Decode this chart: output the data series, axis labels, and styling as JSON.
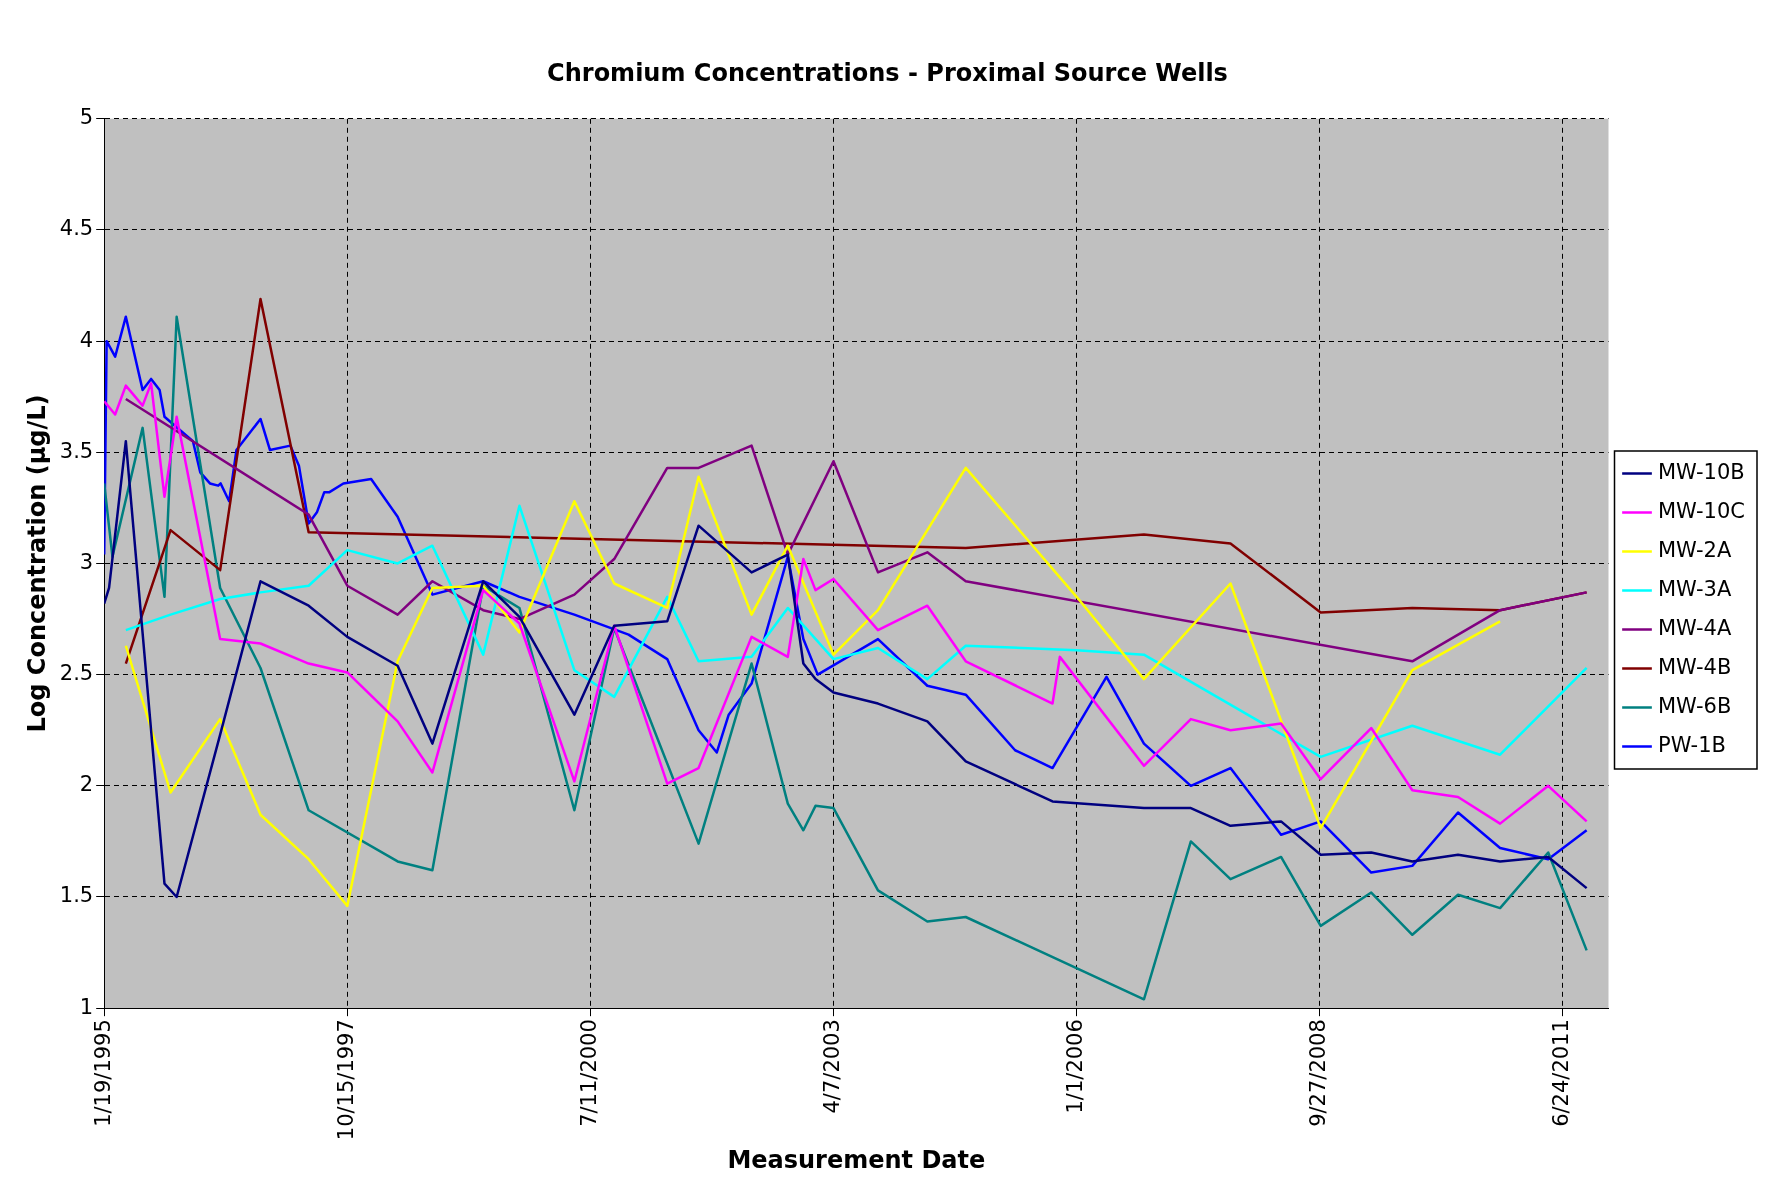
{
  "chart_data": {
    "type": "line",
    "title": "Chromium Concentrations - Proximal Source Wells",
    "xlabel": "Measurement Date",
    "ylabel": "Log Concentration (µg/L)",
    "xlim": [
      "1995-01-19",
      "2011-12-29"
    ],
    "xticks": [
      {
        "value": "1995-01-19",
        "label": "1/19/1995"
      },
      {
        "value": "1997-10-15",
        "label": "10/15/1997"
      },
      {
        "value": "2000-07-11",
        "label": "7/11/2000"
      },
      {
        "value": "2003-04-07",
        "label": "4/7/2003"
      },
      {
        "value": "2006-01-01",
        "label": "1/1/2006"
      },
      {
        "value": "2008-09-27",
        "label": "9/27/2008"
      },
      {
        "value": "2011-06-24",
        "label": "6/24/2011"
      }
    ],
    "ylim": [
      1,
      5
    ],
    "yticks": [
      1,
      1.5,
      2,
      2.5,
      3,
      3.5,
      4,
      4.5,
      5
    ],
    "grid": true,
    "legend": "right",
    "marker": "none",
    "line_style": "solid",
    "series": [
      {
        "name": "MW-10B",
        "color": "#000080",
        "x": [
          "1995-01-19",
          "1995-02-08",
          "1995-04-18",
          "1995-09-24",
          "1995-11-13",
          "1996-05-10",
          "1996-10-23",
          "1997-05-09",
          "1997-10-15",
          "1998-05-10",
          "1998-09-30",
          "1999-04-27",
          "1999-09-23",
          "2000-05-06",
          "2000-10-17",
          "2001-05-23",
          "2001-09-29",
          "2002-05-05",
          "2002-10-01",
          "2002-12-04",
          "2003-01-23",
          "2003-04-07",
          "2003-10-07",
          "2004-04-27",
          "2004-10-02",
          "2005-09-24",
          "2006-10-05",
          "2007-04-16",
          "2007-09-26",
          "2008-04-21",
          "2008-10-01",
          "2009-04-27",
          "2009-10-13",
          "2010-04-19",
          "2010-10-09",
          "2011-04-25",
          "2011-09-30"
        ],
        "values": [
          2.82,
          2.89,
          3.55,
          1.56,
          1.5,
          2.23,
          2.92,
          2.81,
          2.67,
          2.54,
          2.19,
          2.92,
          2.76,
          2.32,
          2.72,
          2.74,
          3.17,
          2.96,
          3.04,
          2.55,
          2.48,
          2.42,
          2.37,
          2.29,
          2.11,
          1.93,
          1.9,
          1.9,
          1.82,
          1.84,
          1.69,
          1.7,
          1.66,
          1.69,
          1.66,
          1.68,
          1.54
        ]
      },
      {
        "name": "MW-10C",
        "color": "#ff00ff",
        "x": [
          "1995-01-19",
          "1995-03-05",
          "1995-04-18",
          "1995-06-26",
          "1995-07-31",
          "1995-09-24",
          "1995-11-13",
          "1996-05-10",
          "1996-10-23",
          "1997-05-09",
          "1997-10-15",
          "1998-05-10",
          "1998-09-30",
          "1999-04-27",
          "1999-09-23",
          "2000-05-06",
          "2000-10-17",
          "2001-05-23",
          "2001-09-29",
          "2002-05-05",
          "2002-10-01",
          "2002-12-04",
          "2003-01-23",
          "2003-04-07",
          "2003-10-07",
          "2004-04-27",
          "2004-10-02",
          "2005-09-24",
          "2005-10-24",
          "2006-10-05",
          "2007-04-16",
          "2007-09-26",
          "2008-04-21",
          "2008-10-01",
          "2009-04-27",
          "2009-10-13",
          "2010-04-19",
          "2010-10-09",
          "2011-04-25",
          "2011-09-30"
        ],
        "values": [
          3.73,
          3.67,
          3.8,
          3.71,
          3.81,
          3.3,
          3.66,
          2.66,
          2.64,
          2.55,
          2.51,
          2.29,
          2.06,
          2.88,
          2.73,
          2.02,
          2.72,
          2.01,
          2.08,
          2.67,
          2.58,
          3.02,
          2.88,
          2.93,
          2.7,
          2.81,
          2.56,
          2.37,
          2.58,
          2.09,
          2.3,
          2.25,
          2.28,
          2.03,
          2.26,
          1.98,
          1.95,
          1.83,
          2,
          1.84
        ]
      },
      {
        "name": "MW-2A",
        "color": "#ffff00",
        "x": [
          "1995-04-18",
          "1995-10-19",
          "1996-05-10",
          "1996-10-23",
          "1997-05-09",
          "1997-10-15",
          "1998-05-10",
          "1998-09-30",
          "1999-04-27",
          "1999-09-23",
          "2000-05-06",
          "2000-10-17",
          "2001-05-23",
          "2001-09-29",
          "2002-05-05",
          "2002-10-01",
          "2003-04-07",
          "2003-10-07",
          "2004-10-02",
          "2006-01-01",
          "2006-10-05",
          "2007-09-26",
          "2008-10-01",
          "2009-10-13",
          "2010-10-09"
        ],
        "values": [
          2.63,
          1.97,
          2.3,
          1.87,
          1.67,
          1.46,
          2.56,
          2.89,
          2.9,
          2.69,
          3.28,
          2.91,
          2.8,
          3.39,
          2.77,
          3.08,
          2.59,
          2.79,
          3.43,
          2.85,
          2.48,
          2.91,
          1.81,
          2.52,
          2.74
        ]
      },
      {
        "name": "MW-3A",
        "color": "#00ffff",
        "x": [
          "1995-04-18",
          "1995-10-19",
          "1996-05-10",
          "1996-10-23",
          "1997-05-09",
          "1997-10-15",
          "1998-05-10",
          "1998-09-30",
          "1999-04-27",
          "1999-09-23",
          "2000-05-06",
          "2000-10-17",
          "2001-05-23",
          "2001-09-29",
          "2002-05-05",
          "2002-10-01",
          "2003-04-07",
          "2003-10-07",
          "2004-04-27",
          "2004-10-02",
          "2006-01-01",
          "2006-10-05",
          "2008-10-01",
          "2009-10-13",
          "2010-10-09",
          "2011-09-30"
        ],
        "values": [
          2.7,
          2.77,
          2.84,
          2.87,
          2.9,
          3.06,
          3,
          3.08,
          2.59,
          3.26,
          2.52,
          2.4,
          2.85,
          2.56,
          2.58,
          2.8,
          2.57,
          2.62,
          2.48,
          2.63,
          2.61,
          2.59,
          2.13,
          2.27,
          2.14,
          2.53
        ]
      },
      {
        "name": "MW-4A",
        "color": "#800080",
        "x": [
          "1995-04-18",
          "1997-05-09",
          "1997-10-15",
          "1998-05-10",
          "1998-09-30",
          "1999-04-27",
          "1999-09-23",
          "2000-05-06",
          "2000-10-17",
          "2001-05-23",
          "2001-09-29",
          "2002-05-05",
          "2002-10-01",
          "2003-04-07",
          "2003-10-07",
          "2004-04-27",
          "2004-10-02",
          "2009-10-13",
          "2010-10-09",
          "2011-09-30"
        ],
        "values": [
          3.74,
          3.22,
          2.9,
          2.77,
          2.92,
          2.79,
          2.75,
          2.86,
          3.02,
          3.43,
          3.43,
          3.53,
          3.04,
          3.46,
          2.96,
          3.05,
          2.92,
          2.56,
          2.79,
          2.87
        ]
      },
      {
        "name": "MW-4B",
        "color": "#800000",
        "x": [
          "1995-04-18",
          "1995-10-19",
          "1996-05-10",
          "1996-10-23",
          "1997-05-09",
          "2004-10-02",
          "2006-10-05",
          "2007-09-26",
          "2008-10-01",
          "2009-10-13",
          "2010-10-09",
          "2011-09-30"
        ],
        "values": [
          2.55,
          3.15,
          2.97,
          4.19,
          3.14,
          3.07,
          3.13,
          3.09,
          2.78,
          2.8,
          2.79,
          2.87
        ]
      },
      {
        "name": "MW-6B",
        "color": "#008080",
        "x": [
          "1995-01-19",
          "1995-02-22",
          "1995-06-26",
          "1995-09-24",
          "1995-11-13",
          "1996-05-10",
          "1996-10-23",
          "1997-05-09",
          "1998-05-10",
          "1998-09-30",
          "1999-04-27",
          "1999-09-23",
          "2000-05-06",
          "2000-10-17",
          "2001-09-29",
          "2002-05-05",
          "2002-10-01",
          "2002-12-04",
          "2003-01-23",
          "2003-04-07",
          "2003-10-07",
          "2004-04-27",
          "2004-10-02",
          "2006-10-05",
          "2007-04-16",
          "2007-09-26",
          "2008-04-21",
          "2008-10-01",
          "2009-04-27",
          "2009-10-13",
          "2010-04-19",
          "2010-10-09",
          "2011-04-25",
          "2011-09-30"
        ],
        "values": [
          3.36,
          3.03,
          3.61,
          2.85,
          4.11,
          2.89,
          2.53,
          1.89,
          1.66,
          1.62,
          2.9,
          2.8,
          1.89,
          2.71,
          1.74,
          2.55,
          1.92,
          1.8,
          1.91,
          1.9,
          1.53,
          1.39,
          1.41,
          1.04,
          1.75,
          1.58,
          1.68,
          1.37,
          1.52,
          1.33,
          1.51,
          1.45,
          1.7,
          1.26
        ]
      },
      {
        "name": "PW-1B",
        "color": "#0000ff",
        "x": [
          "1995-01-19",
          "1995-01-29",
          "1995-03-05",
          "1995-04-18",
          "1995-06-26",
          "1995-07-31",
          "1995-09-04",
          "1995-09-24",
          "1996-01-19",
          "1996-02-18",
          "1996-03-29",
          "1996-05-02",
          "1996-05-12",
          "1996-06-16",
          "1996-07-16",
          "1996-10-23",
          "1996-12-01",
          "1997-02-23",
          "1997-03-30",
          "1997-05-09",
          "1997-06-12",
          "1997-07-12",
          "1997-08-01",
          "1997-09-29",
          "1998-01-21",
          "1998-05-10",
          "1998-09-30",
          "1999-04-27",
          "1999-09-23",
          "2000-05-06",
          "2000-12-15",
          "2001-05-23",
          "2001-09-29",
          "2001-12-13",
          "2002-01-31",
          "2002-05-05",
          "2002-10-01",
          "2002-12-04",
          "2003-02-01",
          "2003-10-07",
          "2004-04-27",
          "2004-10-02",
          "2005-04-23",
          "2005-09-24",
          "2006-05-04",
          "2006-10-05",
          "2007-04-16",
          "2007-09-26",
          "2008-04-21",
          "2008-10-01",
          "2009-04-27",
          "2009-10-13",
          "2010-04-19",
          "2010-10-09",
          "2011-04-25",
          "2011-09-30"
        ],
        "values": [
          3.04,
          4,
          3.93,
          4.11,
          3.78,
          3.83,
          3.78,
          3.66,
          3.55,
          3.41,
          3.36,
          3.35,
          3.36,
          3.28,
          3.51,
          3.65,
          3.51,
          3.53,
          3.44,
          3.18,
          3.23,
          3.32,
          3.32,
          3.36,
          3.38,
          3.21,
          2.86,
          2.92,
          2.85,
          2.77,
          2.68,
          2.57,
          2.25,
          2.15,
          2.32,
          2.46,
          3.03,
          2.66,
          2.5,
          2.66,
          2.45,
          2.41,
          2.16,
          2.08,
          2.49,
          2.19,
          2,
          2.08,
          1.78,
          1.84,
          1.61,
          1.64,
          1.88,
          1.72,
          1.67,
          1.8
        ]
      }
    ]
  }
}
